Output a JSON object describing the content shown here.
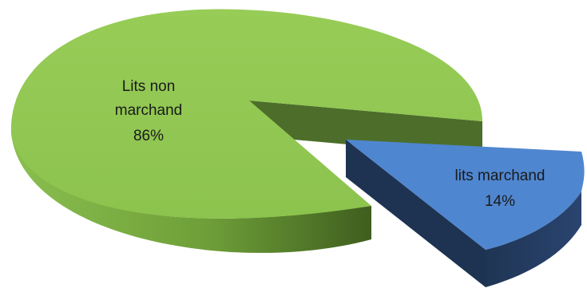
{
  "chart_data": {
    "type": "pie",
    "style": "3d-exploded",
    "slices": [
      {
        "label": "Lits non marchand",
        "label_lines": [
          "Lits non",
          "marchand"
        ],
        "value": 86,
        "display": "86%",
        "color": "#92C953",
        "side_color": "#5E8C2E"
      },
      {
        "label": "lits marchand",
        "label_lines": [
          "lits marchand"
        ],
        "value": 14,
        "display": "14%",
        "color": "#4F86D0",
        "side_color": "#223A5E"
      }
    ],
    "title": "",
    "legend": "none"
  }
}
